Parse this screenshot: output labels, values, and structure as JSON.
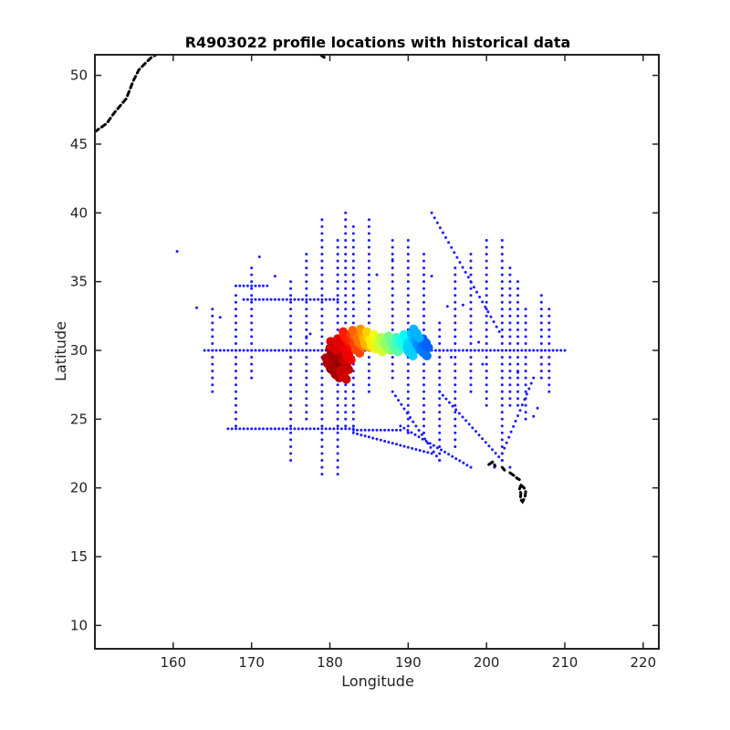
{
  "chart_data": {
    "type": "scatter",
    "title": "R4903022 profile locations with historical data",
    "xlabel": "Longitude",
    "ylabel": "Latitude",
    "xlim": [
      150,
      222
    ],
    "ylim": [
      8.3,
      51.5
    ],
    "xticks": [
      160,
      170,
      180,
      190,
      200,
      210,
      220
    ],
    "yticks": [
      10,
      15,
      20,
      25,
      30,
      35,
      40,
      45,
      50
    ],
    "grid": false,
    "colors": {
      "historical": "#1a1aff",
      "coastline": "#000000",
      "profile_colormap": [
        "#00007f",
        "#0000ff",
        "#007fff",
        "#00ffff",
        "#7fff7f",
        "#ffff00",
        "#ff7f00",
        "#ff0000",
        "#7f0000"
      ]
    },
    "series": [
      {
        "role": "historical",
        "color": "#1a1aff",
        "lines": [
          {
            "orient": "h",
            "lat": 30.0,
            "from": 164,
            "to": 210
          },
          {
            "orient": "h",
            "lat": 24.3,
            "from": 167,
            "to": 183
          },
          {
            "orient": "h",
            "lat": 24.2,
            "from": 183,
            "to": 189
          },
          {
            "orient": "h",
            "lat": 34.7,
            "from": 168,
            "to": 172
          },
          {
            "orient": "h",
            "lat": 33.7,
            "from": 169,
            "to": 181
          },
          {
            "orient": "v",
            "lon": 165,
            "from": 27,
            "to": 33
          },
          {
            "orient": "v",
            "lon": 168,
            "from": 24.5,
            "to": 34
          },
          {
            "orient": "v",
            "lon": 170,
            "from": 28,
            "to": 36
          },
          {
            "orient": "v",
            "lon": 175,
            "from": 22,
            "to": 35
          },
          {
            "orient": "v",
            "lon": 177,
            "from": 25,
            "to": 37
          },
          {
            "orient": "v",
            "lon": 179,
            "from": 21,
            "to": 39.5
          },
          {
            "orient": "v",
            "lon": 181,
            "from": 21,
            "to": 38
          },
          {
            "orient": "v",
            "lon": 182,
            "from": 24.5,
            "to": 40.3
          },
          {
            "orient": "v",
            "lon": 183,
            "from": 24.5,
            "to": 39
          },
          {
            "orient": "v",
            "lon": 185,
            "from": 27,
            "to": 39.5
          },
          {
            "orient": "v",
            "lon": 188,
            "from": 28,
            "to": 38
          },
          {
            "orient": "v",
            "lon": 190,
            "from": 24,
            "to": 38
          },
          {
            "orient": "v",
            "lon": 192,
            "from": 24,
            "to": 37
          },
          {
            "orient": "v",
            "lon": 194,
            "from": 22,
            "to": 32
          },
          {
            "orient": "v",
            "lon": 196,
            "from": 23,
            "to": 36
          },
          {
            "orient": "v",
            "lon": 198,
            "from": 27,
            "to": 37
          },
          {
            "orient": "v",
            "lon": 200,
            "from": 26,
            "to": 38
          },
          {
            "orient": "v",
            "lon": 202,
            "from": 22,
            "to": 38
          },
          {
            "orient": "v",
            "lon": 203,
            "from": 26,
            "to": 36
          },
          {
            "orient": "v",
            "lon": 204,
            "from": 26,
            "to": 35
          },
          {
            "orient": "v",
            "lon": 205,
            "from": 25,
            "to": 33
          },
          {
            "orient": "v",
            "lon": 207,
            "from": 28,
            "to": 34
          },
          {
            "orient": "v",
            "lon": 208,
            "from": 27,
            "to": 33
          },
          {
            "orient": "d",
            "x1": 193,
            "y1": 40,
            "x2": 202,
            "y2": 31
          },
          {
            "orient": "d",
            "x1": 183,
            "y1": 24,
            "x2": 193,
            "y2": 22.5
          },
          {
            "orient": "d",
            "x1": 189,
            "y1": 24.5,
            "x2": 198,
            "y2": 21.5
          },
          {
            "orient": "d",
            "x1": 194,
            "y1": 27,
            "x2": 202,
            "y2": 22
          },
          {
            "orient": "d",
            "x1": 188,
            "y1": 27,
            "x2": 194,
            "y2": 22
          },
          {
            "orient": "d",
            "x1": 206,
            "y1": 28,
            "x2": 202,
            "y2": 22.5
          }
        ],
        "points": [
          [
            160.5,
            37.2
          ],
          [
            163,
            33.1
          ],
          [
            166,
            32.4
          ],
          [
            171,
            36.8
          ],
          [
            173,
            35.4
          ],
          [
            177,
            30.9
          ],
          [
            177.5,
            31.2
          ],
          [
            186,
            35.5
          ],
          [
            188,
            36.6
          ],
          [
            193,
            35.4
          ],
          [
            195,
            33.2
          ],
          [
            195.5,
            29.5
          ],
          [
            197,
            33.3
          ],
          [
            199,
            30.6
          ],
          [
            199.5,
            29.0
          ],
          [
            204,
            28.4
          ],
          [
            206,
            25.2
          ],
          [
            206.5,
            25.8
          ],
          [
            201,
            21.5
          ],
          [
            203,
            21.5
          ]
        ]
      },
      {
        "role": "profiles",
        "colormap": "jet",
        "points": [
          [
            180.2,
            28.7,
            1.0
          ],
          [
            180.6,
            29.2,
            0.98
          ],
          [
            181.0,
            28.6,
            0.99
          ],
          [
            181.5,
            29.4,
            0.97
          ],
          [
            180.3,
            29.8,
            0.96
          ],
          [
            179.8,
            29.1,
            0.95
          ],
          [
            181.2,
            30.1,
            0.94
          ],
          [
            182.0,
            28.9,
            0.93
          ],
          [
            180.8,
            28.3,
            0.96
          ],
          [
            181.7,
            28.2,
            0.92
          ],
          [
            180.4,
            30.3,
            0.91
          ],
          [
            181.3,
            30.5,
            0.9
          ],
          [
            182.3,
            29.6,
            0.89
          ],
          [
            182.6,
            30.4,
            0.87
          ],
          [
            182.0,
            31.0,
            0.85
          ],
          [
            182.9,
            30.8,
            0.83
          ],
          [
            183.4,
            30.1,
            0.81
          ],
          [
            183.2,
            31.1,
            0.78
          ],
          [
            183.8,
            30.6,
            0.76
          ],
          [
            184.2,
            31.2,
            0.73
          ],
          [
            184.6,
            30.5,
            0.7
          ],
          [
            185.0,
            31.0,
            0.67
          ],
          [
            185.4,
            30.4,
            0.64
          ],
          [
            185.9,
            30.8,
            0.61
          ],
          [
            186.3,
            30.2,
            0.58
          ],
          [
            186.8,
            30.6,
            0.55
          ],
          [
            187.3,
            30.3,
            0.52
          ],
          [
            187.8,
            30.7,
            0.49
          ],
          [
            188.3,
            30.2,
            0.46
          ],
          [
            188.8,
            30.6,
            0.43
          ],
          [
            189.3,
            30.4,
            0.4
          ],
          [
            189.8,
            30.8,
            0.37
          ],
          [
            190.3,
            30.2,
            0.34
          ],
          [
            190.7,
            30.9,
            0.31
          ],
          [
            191.2,
            30.4,
            0.28
          ],
          [
            191.6,
            30.1,
            0.26
          ],
          [
            192.0,
            29.9,
            0.24
          ],
          [
            192.2,
            30.5,
            0.22
          ],
          [
            191.0,
            31.2,
            0.3
          ],
          [
            190.2,
            29.9,
            0.33
          ]
        ]
      },
      {
        "role": "coastline",
        "color": "#000000",
        "paths": [
          [
            [
              150,
              45.9
            ],
            [
              151.5,
              46.5
            ],
            [
              152.5,
              47.3
            ],
            [
              154.0,
              48.3
            ],
            [
              154.9,
              49.6
            ],
            [
              155.6,
              50.4
            ],
            [
              156.3,
              50.8
            ],
            [
              157.2,
              51.3
            ],
            [
              157.8,
              51.5
            ]
          ],
          [
            [
              178.8,
              51.5
            ],
            [
              179.3,
              51.3
            ]
          ],
          [
            [
              200.3,
              21.7
            ],
            [
              200.8,
              21.9
            ],
            [
              201.1,
              21.6
            ]
          ],
          [
            [
              202.0,
              21.5
            ],
            [
              202.3,
              21.3
            ]
          ],
          [
            [
              203.0,
              21.1
            ],
            [
              203.5,
              20.9
            ],
            [
              203.9,
              20.7
            ],
            [
              204.2,
              20.6
            ]
          ],
          [
            [
              204.4,
              20.2
            ],
            [
              204.8,
              20.0
            ],
            [
              205.0,
              19.7
            ],
            [
              204.9,
              19.3
            ],
            [
              204.6,
              19.0
            ],
            [
              204.3,
              19.2
            ],
            [
              204.4,
              19.6
            ],
            [
              204.2,
              19.9
            ],
            [
              204.4,
              20.2
            ]
          ]
        ]
      }
    ]
  }
}
